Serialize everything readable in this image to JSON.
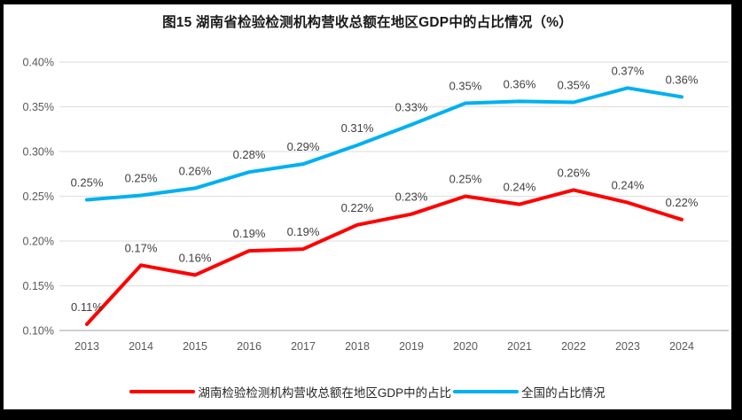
{
  "title": "图15 湖南省检验检测机构营收总额在地区GDP中的占比情况（%）",
  "chart_data": {
    "type": "line",
    "title": "图15 湖南省检验检测机构营收总额在地区GDP中的占比情况（%）",
    "x": [
      "2013",
      "2014",
      "2015",
      "2016",
      "2017",
      "2018",
      "2019",
      "2020",
      "2021",
      "2022",
      "2023",
      "2024"
    ],
    "series": [
      {
        "name": "湖南检验检测机构营收总额在地区GDP中的占比",
        "color": "#FF0000",
        "values": [
          0.11,
          0.17,
          0.16,
          0.19,
          0.19,
          0.22,
          0.23,
          0.25,
          0.24,
          0.26,
          0.24,
          0.22
        ],
        "labels": [
          "0.11%",
          "0.17%",
          "0.16%",
          "0.19%",
          "0.19%",
          "0.22%",
          "0.23%",
          "0.25%",
          "0.24%",
          "0.26%",
          "0.24%",
          "0.22%"
        ],
        "plot_values": [
          0.107,
          0.173,
          0.162,
          0.189,
          0.191,
          0.218,
          0.23,
          0.25,
          0.241,
          0.257,
          0.243,
          0.224
        ]
      },
      {
        "name": "全国的占比情况",
        "color": "#00B0F0",
        "values": [
          0.25,
          0.25,
          0.26,
          0.28,
          0.29,
          0.31,
          0.33,
          0.35,
          0.36,
          0.35,
          0.37,
          0.36
        ],
        "labels": [
          "0.25%",
          "0.25%",
          "0.26%",
          "0.28%",
          "0.29%",
          "0.31%",
          "0.33%",
          "0.35%",
          "0.36%",
          "0.35%",
          "0.37%",
          "0.36%"
        ],
        "plot_values": [
          0.246,
          0.251,
          0.259,
          0.277,
          0.286,
          0.307,
          0.33,
          0.354,
          0.356,
          0.355,
          0.371,
          0.361
        ]
      }
    ],
    "ylim": [
      0.1,
      0.4
    ],
    "ytick_step": 0.05,
    "yticks_labels": [
      "0.40%",
      "0.35%",
      "0.30%",
      "0.25%",
      "0.20%",
      "0.15%",
      "0.10%"
    ],
    "grid": true,
    "legend_position": "bottom",
    "colors": {
      "gridline": "#E2E2E2",
      "axis_line": "#BFBFBF",
      "tick_label": "#595959",
      "data_label": "#3f3f3f",
      "title": "#1a1a1a",
      "background": "#ffffff",
      "frame_border": "#000000"
    }
  }
}
